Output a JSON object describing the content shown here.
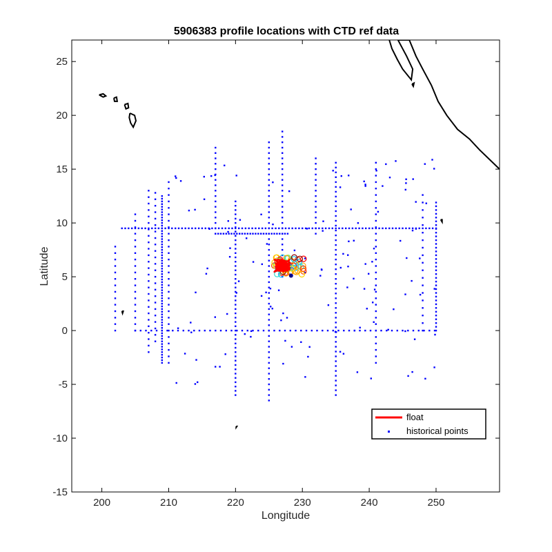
{
  "chart_data": {
    "type": "scatter",
    "title": "5906383 profile locations with CTD ref data",
    "xlabel": "Longitude",
    "ylabel": "Latitude",
    "xlim": [
      195.5,
      259.5
    ],
    "ylim": [
      -15,
      27
    ],
    "xticks": [
      200,
      210,
      220,
      230,
      240,
      250
    ],
    "yticks": [
      -15,
      -10,
      -5,
      0,
      5,
      10,
      15,
      20,
      25
    ],
    "grid": false,
    "legend": {
      "position": "bottom-right",
      "entries": [
        {
          "label": "float",
          "marker": "line",
          "color": "#ff0000"
        },
        {
          "label": "historical points",
          "marker": "dot",
          "color": "#0000ff"
        }
      ]
    },
    "series": [
      {
        "name": "historical points",
        "color": "#0000ff",
        "groups": [
          {
            "pattern": "vertical",
            "x": 209,
            "ymin": -3,
            "ymax": 12.5,
            "step": 0.25
          },
          {
            "pattern": "vertical",
            "x": 225,
            "ymin": -6.5,
            "ymax": 17.5,
            "step": 0.5
          },
          {
            "pattern": "vertical",
            "x": 227,
            "ymin": 5,
            "ymax": 18.5,
            "step": 0.5
          },
          {
            "pattern": "vertical",
            "x": 217,
            "ymin": 9,
            "ymax": 17,
            "step": 0.5
          },
          {
            "pattern": "vertical",
            "x": 250,
            "ymin": 0,
            "ymax": 12,
            "step": 0.35
          },
          {
            "pattern": "vertical",
            "x": 202,
            "ymin": 0,
            "ymax": 8,
            "step": 0.6
          },
          {
            "pattern": "vertical",
            "x": 205,
            "ymin": 0,
            "ymax": 11,
            "step": 0.6
          },
          {
            "pattern": "vertical",
            "x": 207,
            "ymin": -2,
            "ymax": 13,
            "step": 0.6
          },
          {
            "pattern": "vertical",
            "x": 208,
            "ymin": -1,
            "ymax": 13,
            "step": 0.6
          },
          {
            "pattern": "vertical",
            "x": 210,
            "ymin": -3,
            "ymax": 14,
            "step": 0.6
          },
          {
            "pattern": "vertical",
            "x": 220,
            "ymin": -6,
            "ymax": 12,
            "step": 0.4
          },
          {
            "pattern": "vertical",
            "x": 235,
            "ymin": -6,
            "ymax": 16,
            "step": 0.45
          },
          {
            "pattern": "vertical",
            "x": 241,
            "ymin": -3,
            "ymax": 16,
            "step": 0.6
          },
          {
            "pattern": "vertical",
            "x": 232,
            "ymin": 9,
            "ymax": 16,
            "step": 0.5
          },
          {
            "pattern": "vertical",
            "x": 248,
            "ymin": 0,
            "ymax": 13,
            "step": 0.7
          },
          {
            "pattern": "horizontal",
            "y": 9.5,
            "xmin": 203,
            "xmax": 250,
            "step": 0.5
          },
          {
            "pattern": "horizontal",
            "y": 9,
            "xmin": 217,
            "xmax": 228,
            "step": 0.4
          },
          {
            "pattern": "horizontal",
            "y": 0,
            "xmin": 205,
            "xmax": 250,
            "step": 0.8
          },
          {
            "pattern": "scatter",
            "count": 140,
            "xmin": 211,
            "xmax": 250,
            "ymin": -5,
            "ymax": 16,
            "seed": 7
          }
        ]
      },
      {
        "name": "float",
        "color": "#ff0000",
        "center": [
          227,
          6
        ],
        "cluster_lon_range": [
          225.5,
          230.5
        ],
        "cluster_lat_range": [
          5,
          7
        ]
      }
    ],
    "coastlines": [
      {
        "name": "hawaii-kauai",
        "points": [
          [
            199.6,
            21.9
          ],
          [
            200.2,
            22.0
          ],
          [
            200.6,
            21.8
          ],
          [
            200.2,
            21.7
          ],
          [
            199.6,
            21.9
          ]
        ]
      },
      {
        "name": "hawaii-oahu",
        "points": [
          [
            201.8,
            21.6
          ],
          [
            202.2,
            21.7
          ],
          [
            202.3,
            21.3
          ],
          [
            201.9,
            21.3
          ],
          [
            201.8,
            21.6
          ]
        ]
      },
      {
        "name": "hawaii-maui",
        "points": [
          [
            203.4,
            21.0
          ],
          [
            203.9,
            21.1
          ],
          [
            204.0,
            20.7
          ],
          [
            203.6,
            20.6
          ],
          [
            203.4,
            21.0
          ]
        ]
      },
      {
        "name": "hawaii-big",
        "points": [
          [
            204.2,
            20.2
          ],
          [
            204.9,
            20.0
          ],
          [
            205.1,
            19.5
          ],
          [
            204.7,
            18.9
          ],
          [
            204.3,
            19.3
          ],
          [
            204.1,
            19.8
          ],
          [
            204.2,
            20.2
          ]
        ]
      },
      {
        "name": "clipperton",
        "points": [
          [
            250.7,
            10.3
          ],
          [
            250.9,
            10.3
          ],
          [
            250.9,
            10.1
          ],
          [
            250.7,
            10.3
          ]
        ]
      },
      {
        "name": "islet-south",
        "points": [
          [
            203,
            1.8
          ],
          [
            203.2,
            1.8
          ],
          [
            203.1,
            1.6
          ],
          [
            203,
            1.8
          ]
        ]
      },
      {
        "name": "islet-far-south",
        "points": [
          [
            220.1,
            -8.9
          ],
          [
            220.2,
            -8.9
          ],
          [
            220.1,
            -9.0
          ],
          [
            220.1,
            -8.9
          ]
        ]
      },
      {
        "name": "mexico-coast",
        "points": [
          [
            243.0,
            27
          ],
          [
            243.4,
            26.2
          ],
          [
            244.2,
            25.2
          ],
          [
            245.0,
            24.3
          ],
          [
            246.3,
            23.3
          ],
          [
            246.5,
            24.3
          ],
          [
            245.6,
            25.5
          ],
          [
            244.3,
            27
          ],
          [
            246.0,
            27
          ],
          [
            247.0,
            25.5
          ],
          [
            248.0,
            24.3
          ],
          [
            249.3,
            22.8
          ],
          [
            250.3,
            21.3
          ],
          [
            251.6,
            20.0
          ],
          [
            253.2,
            18.7
          ],
          [
            255.0,
            17.8
          ],
          [
            256.5,
            16.8
          ],
          [
            258.0,
            15.9
          ],
          [
            259.5,
            15.0
          ]
        ]
      },
      {
        "name": "baja-tip",
        "points": [
          [
            246.4,
            22.9
          ],
          [
            246.7,
            23.0
          ],
          [
            246.6,
            22.7
          ],
          [
            246.4,
            22.9
          ]
        ]
      }
    ]
  }
}
